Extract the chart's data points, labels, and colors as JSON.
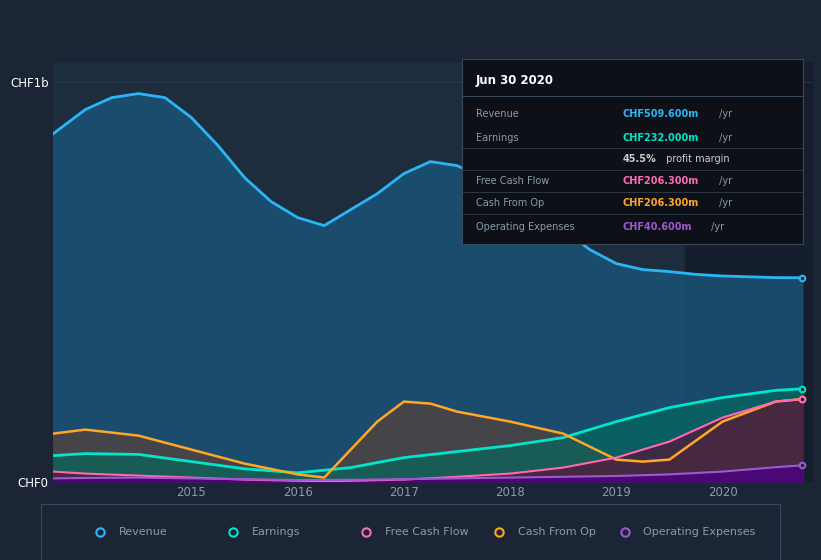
{
  "bg_color": "#1c2535",
  "plot_bg_color": "#1e2d3d",
  "grid_color": "#2d3f52",
  "fig_width": 8.21,
  "fig_height": 5.6,
  "x_min": 2013.7,
  "x_max": 2020.85,
  "y_min": 0,
  "y_max": 1050000000,
  "highlight_x_start": 2019.65,
  "highlight_x_end": 2020.85,
  "highlight_color": "#151e2c",
  "series": {
    "revenue": {
      "color": "#29b6f6",
      "fill_color": "#1a5276",
      "fill_alpha": 0.85,
      "x": [
        2013.7,
        2014.0,
        2014.25,
        2014.5,
        2014.75,
        2015.0,
        2015.25,
        2015.5,
        2015.75,
        2016.0,
        2016.25,
        2016.5,
        2016.75,
        2017.0,
        2017.25,
        2017.5,
        2017.75,
        2018.0,
        2018.25,
        2018.5,
        2018.75,
        2019.0,
        2019.25,
        2019.5,
        2019.75,
        2020.0,
        2020.25,
        2020.5,
        2020.75
      ],
      "y": [
        870000000,
        930000000,
        960000000,
        970000000,
        960000000,
        910000000,
        840000000,
        760000000,
        700000000,
        660000000,
        640000000,
        680000000,
        720000000,
        770000000,
        800000000,
        790000000,
        760000000,
        720000000,
        680000000,
        630000000,
        580000000,
        545000000,
        530000000,
        525000000,
        518000000,
        514000000,
        512000000,
        510000000,
        509600000
      ]
    },
    "earnings": {
      "color": "#00e5cc",
      "fill_color": "#00695c",
      "fill_alpha": 0.65,
      "x": [
        2013.7,
        2014.0,
        2014.5,
        2015.0,
        2015.5,
        2016.0,
        2016.5,
        2017.0,
        2017.5,
        2018.0,
        2018.5,
        2019.0,
        2019.5,
        2020.0,
        2020.5,
        2020.75
      ],
      "y": [
        65000000,
        70000000,
        68000000,
        50000000,
        32000000,
        22000000,
        35000000,
        60000000,
        75000000,
        90000000,
        110000000,
        150000000,
        185000000,
        210000000,
        228000000,
        232000000
      ]
    },
    "free_cash_flow": {
      "color": "#ff69b4",
      "fill_color": "#6d0030",
      "fill_alpha": 0.55,
      "x": [
        2013.7,
        2014.0,
        2014.5,
        2015.0,
        2015.5,
        2016.0,
        2016.25,
        2016.5,
        2017.0,
        2017.5,
        2018.0,
        2018.5,
        2019.0,
        2019.5,
        2020.0,
        2020.5,
        2020.75
      ],
      "y": [
        25000000,
        20000000,
        15000000,
        10000000,
        5000000,
        2000000,
        1000000,
        2000000,
        5000000,
        12000000,
        20000000,
        35000000,
        60000000,
        100000000,
        160000000,
        200000000,
        206300000
      ]
    },
    "cash_from_op": {
      "color": "#ffa726",
      "fill_color": "#5d4037",
      "fill_alpha": 0.65,
      "x": [
        2013.7,
        2014.0,
        2014.5,
        2015.0,
        2015.5,
        2016.0,
        2016.25,
        2016.5,
        2016.75,
        2017.0,
        2017.25,
        2017.5,
        2018.0,
        2018.5,
        2019.0,
        2019.25,
        2019.5,
        2020.0,
        2020.5,
        2020.75
      ],
      "y": [
        120000000,
        130000000,
        115000000,
        80000000,
        45000000,
        18000000,
        10000000,
        80000000,
        150000000,
        200000000,
        195000000,
        175000000,
        150000000,
        120000000,
        55000000,
        50000000,
        55000000,
        150000000,
        200000000,
        206300000
      ]
    },
    "operating_expenses": {
      "color": "#9c59d1",
      "fill_color": "#4a0080",
      "fill_alpha": 0.8,
      "x": [
        2013.7,
        2014.0,
        2014.5,
        2015.0,
        2015.5,
        2016.0,
        2016.5,
        2017.0,
        2017.5,
        2018.0,
        2018.5,
        2019.0,
        2019.5,
        2020.0,
        2020.5,
        2020.75
      ],
      "y": [
        8000000,
        9000000,
        10000000,
        8000000,
        6000000,
        4000000,
        4500000,
        6000000,
        8000000,
        10000000,
        12000000,
        14000000,
        18000000,
        25000000,
        36000000,
        40600000
      ]
    }
  },
  "ytick_labels": [
    "CHF0",
    "CHF1b"
  ],
  "ytick_values": [
    0,
    1000000000
  ],
  "xtick_values": [
    2015,
    2016,
    2017,
    2018,
    2019,
    2020
  ],
  "tooltip": {
    "title": "Jun 30 2020",
    "rows": [
      {
        "label": "Revenue",
        "value": "CHF509.600m",
        "value_color": "#29b6f6"
      },
      {
        "label": "Earnings",
        "value": "CHF232.000m",
        "value_color": "#00e5cc"
      },
      {
        "label": "",
        "value": "45.5% profit margin",
        "value_color": "#cccccc",
        "bold_part": "45.5%"
      },
      {
        "label": "Free Cash Flow",
        "value": "CHF206.300m",
        "value_color": "#ff69b4"
      },
      {
        "label": "Cash From Op",
        "value": "CHF206.300m",
        "value_color": "#ffa726"
      },
      {
        "label": "Operating Expenses",
        "value": "CHF40.600m",
        "value_color": "#9c59d1"
      }
    ]
  },
  "legend_items": [
    {
      "label": "Revenue",
      "color": "#29b6f6"
    },
    {
      "label": "Earnings",
      "color": "#00e5cc"
    },
    {
      "label": "Free Cash Flow",
      "color": "#ff69b4"
    },
    {
      "label": "Cash From Op",
      "color": "#ffa726"
    },
    {
      "label": "Operating Expenses",
      "color": "#9c59d1"
    }
  ],
  "text_color": "#8a9baa",
  "title_color": "#ffffff"
}
